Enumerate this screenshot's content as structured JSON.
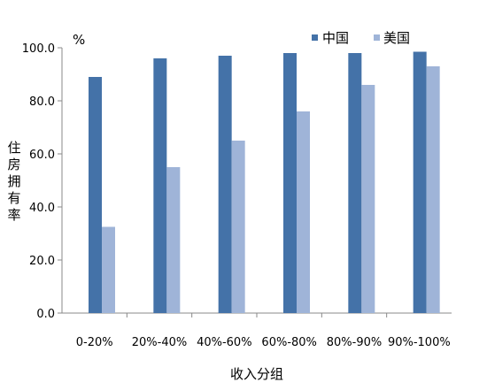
{
  "chart_data": {
    "type": "bar",
    "xlabel": "收入分组",
    "ylabel": "住房拥有率",
    "unit_label": "%",
    "categories": [
      "0-20%",
      "20%-40%",
      "40%-60%",
      "60%-80%",
      "80%-90%",
      "90%-100%"
    ],
    "series": [
      {
        "name": "中国",
        "color": "#4472a8",
        "values": [
          89.0,
          96.0,
          97.0,
          98.0,
          98.0,
          98.5
        ]
      },
      {
        "name": "美国",
        "color": "#9fb4d8",
        "values": [
          32.5,
          55.0,
          65.0,
          76.0,
          86.0,
          93.0
        ]
      }
    ],
    "ylim": [
      0,
      100
    ],
    "yticks": [
      "0.0",
      "20.0",
      "40.0",
      "60.0",
      "80.0",
      "100.0"
    ],
    "grid": false,
    "legend_position": "top-right"
  }
}
